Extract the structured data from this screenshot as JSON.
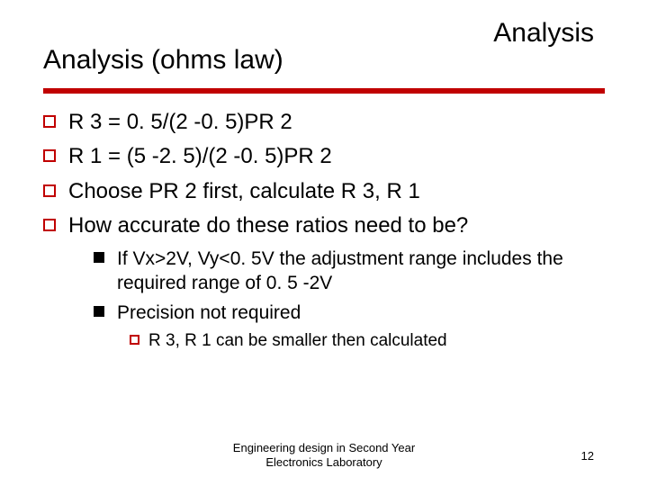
{
  "header_label": "Analysis",
  "title": "Analysis (ohms law)",
  "accent_color": "#c00000",
  "background_color": "#ffffff",
  "bullets_level1": [
    "R 3 = 0. 5/(2 -0. 5)PR 2",
    "R 1 = (5 -2. 5)/(2 -0. 5)PR 2",
    "Choose PR 2 first, calculate R 3, R 1",
    "How accurate do these ratios need to be?"
  ],
  "bullets_level2": [
    "If Vx>2V, Vy<0. 5V the adjustment range includes the required range of 0. 5 -2V",
    "Precision not required"
  ],
  "bullets_level3": [
    "R 3, R 1 can be smaller then calculated"
  ],
  "footer": "Engineering design in Second Year\nElectronics Laboratory",
  "page_number": "12",
  "fonts": {
    "title_size": 30,
    "level1_size": 24,
    "level2_size": 21,
    "level3_size": 19,
    "footer_size": 13
  }
}
